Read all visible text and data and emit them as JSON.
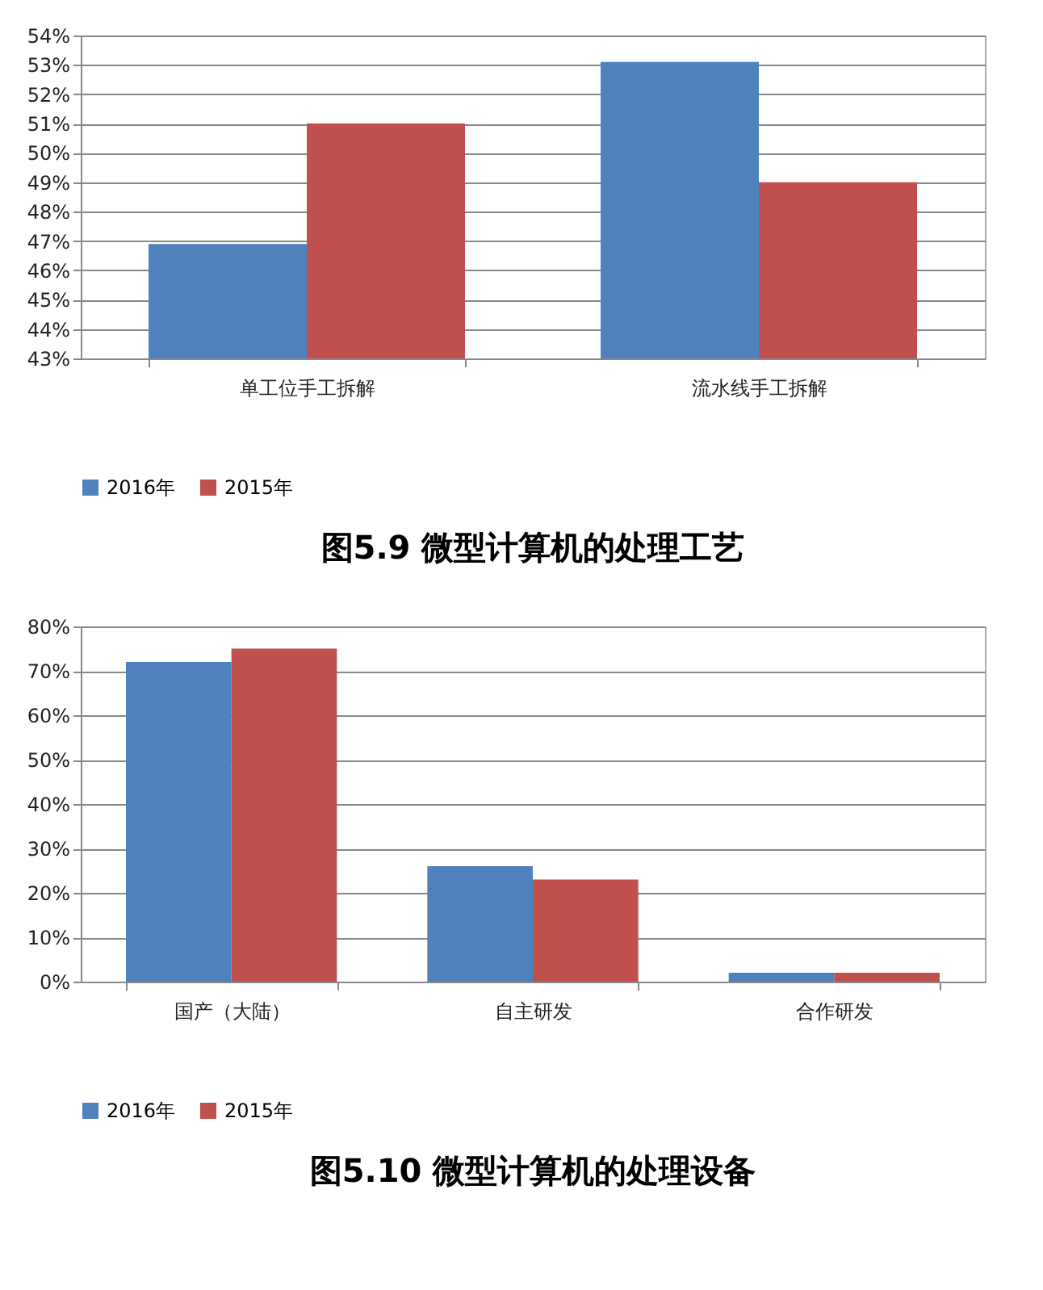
{
  "chart_data": [
    {
      "type": "bar",
      "title": "图5.9 微型计算机的处理工艺",
      "categories": [
        "单工位手工拆解",
        "流水线手工拆解"
      ],
      "series": [
        {
          "name": "2016年",
          "color": "#4f81bd",
          "values": [
            46.9,
            53.1
          ]
        },
        {
          "name": "2015年",
          "color": "#c0504d",
          "values": [
            51.0,
            49.0
          ]
        }
      ],
      "ylim": [
        43,
        54
      ],
      "yticks": [
        {
          "value": 43,
          "label": "43%"
        },
        {
          "value": 44,
          "label": "44%"
        },
        {
          "value": 45,
          "label": "45%"
        },
        {
          "value": 46,
          "label": "46%"
        },
        {
          "value": 47,
          "label": "47%"
        },
        {
          "value": 48,
          "label": "48%"
        },
        {
          "value": 49,
          "label": "49%"
        },
        {
          "value": 50,
          "label": "50%"
        },
        {
          "value": 51,
          "label": "51%"
        },
        {
          "value": 52,
          "label": "52%"
        },
        {
          "value": 53,
          "label": "53%"
        },
        {
          "value": 54,
          "label": "54%"
        }
      ],
      "grid": "y",
      "legend": "bottom"
    },
    {
      "type": "bar",
      "title": "图5.10 微型计算机的处理设备",
      "categories": [
        "国产（大陆）",
        "自主研发",
        "合作研发"
      ],
      "series": [
        {
          "name": "2016年",
          "color": "#4f81bd",
          "values": [
            72,
            26,
            2
          ]
        },
        {
          "name": "2015年",
          "color": "#c0504d",
          "values": [
            75,
            23,
            2
          ]
        }
      ],
      "ylim": [
        0,
        80
      ],
      "yticks": [
        {
          "value": 0,
          "label": "0%"
        },
        {
          "value": 10,
          "label": "10%"
        },
        {
          "value": 20,
          "label": "20%"
        },
        {
          "value": 30,
          "label": "30%"
        },
        {
          "value": 40,
          "label": "40%"
        },
        {
          "value": 50,
          "label": "50%"
        },
        {
          "value": 60,
          "label": "60%"
        },
        {
          "value": 70,
          "label": "70%"
        },
        {
          "value": 80,
          "label": "80%"
        }
      ],
      "grid": "y",
      "legend": "bottom"
    }
  ]
}
